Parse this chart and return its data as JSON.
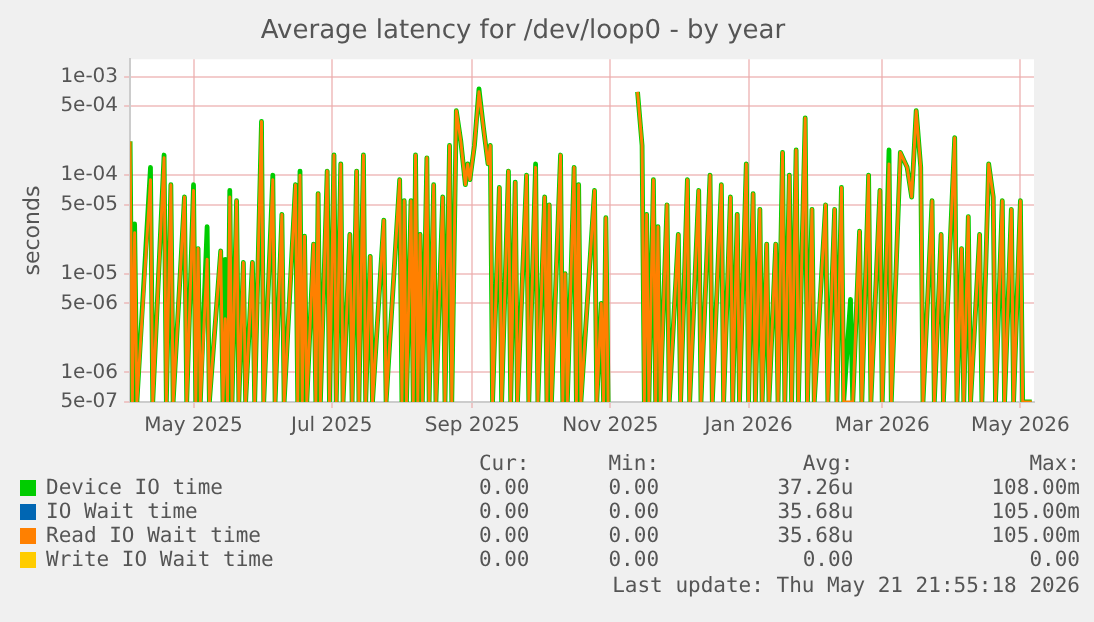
{
  "chart_data": {
    "type": "line",
    "title": "Average latency for /dev/loop0 - by year",
    "ylabel": "seconds",
    "log": "y",
    "grid": true,
    "legend": "bottom",
    "marker": "none",
    "line_style": "solid",
    "ylim": [
      5e-07,
      0.0015
    ],
    "yticks": [
      {
        "value": 5e-07,
        "label": "5e-07"
      },
      {
        "value": 1e-06,
        "label": "1e-06"
      },
      {
        "value": 5e-06,
        "label": "5e-06"
      },
      {
        "value": 1e-05,
        "label": "1e-05"
      },
      {
        "value": 5e-05,
        "label": "5e-05"
      },
      {
        "value": 0.0001,
        "label": "1e-04"
      },
      {
        "value": 0.0005,
        "label": "5e-04"
      },
      {
        "value": 0.001,
        "label": "1e-03"
      }
    ],
    "xlim": [
      "2025-04-17",
      "2026-05-21"
    ],
    "xticks": [
      {
        "value": "2025-05-15",
        "label": "May 2025"
      },
      {
        "value": "2025-07-15",
        "label": "Jul 2025"
      },
      {
        "value": "2025-09-15",
        "label": "Sep 2025"
      },
      {
        "value": "2025-11-15",
        "label": "Nov 2025"
      },
      {
        "value": "2026-01-15",
        "label": "Jan 2026"
      },
      {
        "value": "2026-03-15",
        "label": "Mar 2026"
      },
      {
        "value": "2026-05-15",
        "label": "May 2026"
      }
    ],
    "x": [
      "2025-04-17",
      "2025-04-18",
      "2025-04-19",
      "2025-04-20",
      "2025-04-26",
      "2025-04-27",
      "2025-05-02",
      "2025-05-03",
      "2025-05-05",
      "2025-05-06",
      "2025-05-11",
      "2025-05-12",
      "2025-05-15",
      "2025-05-16",
      "2025-05-17",
      "2025-05-18",
      "2025-05-21",
      "2025-05-22",
      "2025-05-27",
      "2025-05-28",
      "2025-05-29",
      "2025-05-30",
      "2025-05-31",
      "2025-06-01",
      "2025-06-03",
      "2025-06-04",
      "2025-06-06",
      "2025-06-07",
      "2025-06-10",
      "2025-06-11",
      "2025-06-14",
      "2025-06-15",
      "2025-06-19",
      "2025-06-20",
      "2025-06-23",
      "2025-06-24",
      "2025-06-29",
      "2025-06-30",
      "2025-07-01",
      "2025-07-02",
      "2025-07-03",
      "2025-07-04",
      "2025-07-07",
      "2025-07-08",
      "2025-07-09",
      "2025-07-10",
      "2025-07-13",
      "2025-07-14",
      "2025-07-16",
      "2025-07-17",
      "2025-07-19",
      "2025-07-20",
      "2025-07-23",
      "2025-07-24",
      "2025-07-26",
      "2025-07-27",
      "2025-07-29",
      "2025-07-30",
      "2025-08-01",
      "2025-08-02",
      "2025-08-07",
      "2025-08-08",
      "2025-08-14",
      "2025-08-15",
      "2025-08-16",
      "2025-08-17",
      "2025-08-19",
      "2025-08-20",
      "2025-08-21",
      "2025-08-22",
      "2025-08-23",
      "2025-08-24",
      "2025-08-26",
      "2025-08-27",
      "2025-08-29",
      "2025-08-30",
      "2025-09-02",
      "2025-09-03",
      "2025-09-05",
      "2025-09-06",
      "2025-09-08",
      "2025-09-10",
      "2025-09-12",
      "2025-09-13",
      "2025-09-14",
      "2025-09-16",
      "2025-09-18",
      "2025-09-20",
      "2025-09-22",
      "2025-09-23",
      "2025-09-24",
      "2025-09-27",
      "2025-09-28",
      "2025-10-01",
      "2025-10-02",
      "2025-10-04",
      "2025-10-05",
      "2025-10-09",
      "2025-10-10",
      "2025-10-13",
      "2025-10-14",
      "2025-10-17",
      "2025-10-18",
      "2025-10-19",
      "2025-10-20",
      "2025-10-24",
      "2025-10-25",
      "2025-10-26",
      "2025-10-27",
      "2025-10-30",
      "2025-10-31",
      "2025-11-01",
      "2025-11-02",
      "2025-11-08",
      "2025-11-09",
      "2025-11-11",
      "2025-11-12",
      "2025-11-13",
      "2025-11-14",
      "2025-11-20",
      "2025-11-27",
      "2025-11-29",
      "2025-11-30",
      "2025-12-01",
      "2025-12-02",
      "2025-12-04",
      "2025-12-05",
      "2025-12-06",
      "2025-12-07",
      "2025-12-10",
      "2025-12-11",
      "2025-12-15",
      "2025-12-16",
      "2025-12-19",
      "2025-12-20",
      "2025-12-24",
      "2025-12-25",
      "2025-12-29",
      "2025-12-30",
      "2026-01-03",
      "2026-01-04",
      "2026-01-07",
      "2026-01-08",
      "2026-01-10",
      "2026-01-11",
      "2026-01-14",
      "2026-01-15",
      "2026-01-17",
      "2026-01-18",
      "2026-01-20",
      "2026-01-21",
      "2026-01-23",
      "2026-01-24",
      "2026-01-27",
      "2026-01-28",
      "2026-01-30",
      "2026-01-31",
      "2026-02-02",
      "2026-02-03",
      "2026-02-05",
      "2026-02-06",
      "2026-02-09",
      "2026-02-10",
      "2026-02-12",
      "2026-02-13",
      "2026-02-18",
      "2026-02-19",
      "2026-02-22",
      "2026-02-23",
      "2026-02-25",
      "2026-02-26",
      "2026-03-01",
      "2026-03-02",
      "2026-03-05",
      "2026-03-06",
      "2026-03-09",
      "2026-03-10",
      "2026-03-14",
      "2026-03-15",
      "2026-03-18",
      "2026-03-19",
      "2026-03-23",
      "2026-03-26",
      "2026-03-28",
      "2026-03-30",
      "2026-04-01",
      "2026-04-02",
      "2026-04-06",
      "2026-04-07",
      "2026-04-10",
      "2026-04-11",
      "2026-04-16",
      "2026-04-17",
      "2026-04-19",
      "2026-04-20",
      "2026-04-22",
      "2026-04-23",
      "2026-04-27",
      "2026-04-28",
      "2026-05-01",
      "2026-05-03",
      "2026-05-04",
      "2026-05-07",
      "2026-05-08",
      "2026-05-11",
      "2026-05-12",
      "2026-05-15",
      "2026-05-16",
      "2026-05-20"
    ],
    "series": [
      {
        "name": "Device IO time",
        "color": "#00cc00",
        "values": [
          0.00022,
          5e-07,
          3.2e-05,
          5e-07,
          0.00012,
          5e-07,
          0.00016,
          5e-07,
          8e-05,
          5e-07,
          6e-05,
          5e-07,
          8e-05,
          5e-07,
          1.8e-05,
          5e-07,
          3e-05,
          5e-07,
          1.7e-05,
          5e-07,
          1.4e-05,
          5e-07,
          7e-05,
          5e-07,
          5.5e-05,
          5e-07,
          1.3e-05,
          5e-07,
          1.3e-05,
          5e-07,
          0.00035,
          5e-07,
          0.0001,
          5e-07,
          4e-05,
          5e-07,
          8e-05,
          5e-07,
          0.00011,
          5e-07,
          2.4e-05,
          5e-07,
          2e-05,
          5e-07,
          6.5e-05,
          5e-07,
          0.00011,
          5e-07,
          0.00016,
          5e-07,
          0.00013,
          5e-07,
          2.5e-05,
          5e-07,
          0.00011,
          5e-07,
          0.00016,
          5e-07,
          1.5e-05,
          5e-07,
          3.5e-05,
          5e-07,
          9e-05,
          5e-07,
          5.5e-05,
          5e-07,
          5.5e-05,
          5e-07,
          0.00016,
          5e-07,
          2.5e-05,
          5e-07,
          0.00015,
          5e-07,
          8e-05,
          5e-07,
          6e-05,
          5e-07,
          0.0002,
          5e-07,
          0.00045,
          0.00022,
          8e-05,
          0.00013,
          9e-05,
          0.0002,
          0.00075,
          0.0003,
          0.00013,
          0.0002,
          5e-07,
          7.5e-05,
          5e-07,
          0.00011,
          5e-07,
          8.5e-05,
          5e-07,
          0.0001,
          5e-07,
          0.00013,
          5e-07,
          6e-05,
          5e-07,
          5e-05,
          5e-07,
          0.00016,
          5e-07,
          1e-05,
          5e-07,
          0.00012,
          5e-07,
          8e-05,
          5e-07,
          7e-05,
          5e-07,
          5e-06,
          5e-07,
          3.7e-05,
          5e-07,
          null,
          0.0007,
          0.0002,
          5e-07,
          4e-05,
          5e-07,
          9e-05,
          5e-07,
          3e-05,
          5e-07,
          5e-05,
          5e-07,
          2.5e-05,
          5e-07,
          9e-05,
          5e-07,
          7e-05,
          5e-07,
          0.0001,
          5e-07,
          8e-05,
          5e-07,
          6e-05,
          5e-07,
          4e-05,
          5e-07,
          0.00013,
          5e-07,
          6.5e-05,
          5e-07,
          4.5e-05,
          5e-07,
          2e-05,
          5e-07,
          2e-05,
          5e-07,
          0.00017,
          5e-07,
          0.0001,
          5e-07,
          0.00018,
          5e-07,
          0.00038,
          5e-07,
          4.5e-05,
          5e-07,
          5e-05,
          5e-07,
          4.5e-05,
          5e-07,
          7.5e-05,
          5e-07,
          5.5e-06,
          5e-07,
          2.7e-05,
          5e-07,
          0.0001,
          5e-07,
          7e-05,
          5e-07,
          0.00018,
          5e-07,
          0.00017,
          0.00012,
          6e-05,
          0.00045,
          0.00012,
          5e-07,
          5.5e-05,
          5e-07,
          2.5e-05,
          5e-07,
          0.00024,
          5e-07,
          1.8e-05,
          5e-07,
          3.8e-05,
          5e-07,
          2.5e-05,
          5e-07,
          0.00013,
          6e-05,
          5e-07,
          5.5e-05,
          5e-07,
          4.5e-05,
          5e-07,
          5.5e-05,
          5e-07,
          5e-07
        ]
      },
      {
        "name": "IO Wait time",
        "color": "#0066b3",
        "values": [
          null,
          null,
          null,
          null,
          null,
          null,
          null,
          null,
          null,
          null,
          null,
          null,
          null,
          null,
          null,
          null,
          null,
          null,
          null,
          null,
          null,
          null,
          null,
          null,
          null,
          null,
          null,
          null,
          null,
          null,
          null,
          null,
          null,
          null,
          null,
          null,
          null,
          null,
          null,
          null,
          null,
          null,
          null,
          null,
          null,
          null,
          null,
          null,
          null,
          null,
          null,
          null,
          null,
          null,
          null,
          null,
          null,
          null,
          null,
          null,
          null,
          null,
          null,
          null,
          null,
          null,
          null,
          null,
          null,
          null,
          null,
          null,
          null,
          null,
          null,
          null,
          null,
          null,
          null,
          null,
          null,
          null,
          null,
          null,
          null,
          null,
          null,
          null,
          null,
          null,
          null,
          null,
          null,
          null,
          null,
          null,
          null,
          null,
          null,
          null,
          null,
          null,
          null,
          null,
          null,
          null,
          null,
          null,
          null,
          null,
          null,
          null,
          null,
          null,
          null,
          null,
          null,
          null,
          null,
          null,
          null,
          null,
          null,
          null,
          null,
          null,
          null,
          null,
          null,
          null,
          null,
          null,
          null,
          null,
          null,
          null,
          null,
          null,
          null,
          null,
          null,
          null,
          null,
          null,
          null,
          null,
          null,
          null,
          null,
          null,
          null,
          null,
          null,
          null,
          null,
          null,
          null,
          null,
          null,
          null,
          null,
          null,
          null,
          null,
          null,
          null,
          null,
          null,
          null,
          null,
          null,
          null,
          null,
          null,
          null,
          null,
          null,
          null,
          null,
          null,
          null,
          null,
          null,
          null,
          null,
          null,
          null,
          null,
          null,
          null,
          null,
          null,
          null,
          null,
          null,
          null,
          null,
          null,
          null,
          null,
          null,
          null,
          null,
          null,
          null,
          null,
          null,
          null,
          null
        ]
      },
      {
        "name": "Read IO Wait time",
        "color": "#ff8000",
        "values": [
          0.00022,
          5e-07,
          2.6e-05,
          5e-07,
          9e-05,
          5e-07,
          0.00015,
          5e-07,
          8e-05,
          5e-07,
          6e-05,
          5e-07,
          7e-05,
          5e-07,
          1.8e-05,
          5e-07,
          1.4e-05,
          5e-07,
          1.7e-05,
          5e-07,
          3.5e-06,
          5e-07,
          6e-05,
          5e-07,
          5.5e-05,
          5e-07,
          1.3e-05,
          5e-07,
          1.3e-05,
          5e-07,
          0.00035,
          5e-07,
          9e-05,
          5e-07,
          4e-05,
          5e-07,
          8e-05,
          5e-07,
          0.0001,
          5e-07,
          2.4e-05,
          5e-07,
          2e-05,
          5e-07,
          6.5e-05,
          5e-07,
          0.00011,
          5e-07,
          0.00016,
          5e-07,
          0.00013,
          5e-07,
          2.5e-05,
          5e-07,
          0.00011,
          5e-07,
          0.00016,
          5e-07,
          1.5e-05,
          5e-07,
          3.5e-05,
          5e-07,
          9e-05,
          5e-07,
          5.5e-05,
          5e-07,
          5.5e-05,
          5e-07,
          0.00016,
          5e-07,
          2.5e-05,
          5e-07,
          0.00015,
          5e-07,
          8e-05,
          5e-07,
          6e-05,
          5e-07,
          0.0002,
          5e-07,
          0.00045,
          0.00022,
          8e-05,
          0.00013,
          9e-05,
          0.0002,
          0.0007,
          0.0003,
          0.00013,
          0.0002,
          5e-07,
          7.5e-05,
          5e-07,
          0.00011,
          5e-07,
          8.5e-05,
          5e-07,
          0.0001,
          5e-07,
          0.00012,
          5e-07,
          6e-05,
          5e-07,
          5e-05,
          5e-07,
          0.00016,
          5e-07,
          1e-05,
          5e-07,
          0.00012,
          5e-07,
          8e-05,
          5e-07,
          7e-05,
          5e-07,
          5e-06,
          5e-07,
          3.7e-05,
          5e-07,
          null,
          0.0007,
          0.0002,
          5e-07,
          4e-05,
          5e-07,
          9e-05,
          5e-07,
          3e-05,
          5e-07,
          5e-05,
          5e-07,
          2.5e-05,
          5e-07,
          9e-05,
          5e-07,
          7e-05,
          5e-07,
          0.0001,
          5e-07,
          8e-05,
          5e-07,
          6e-05,
          5e-07,
          4e-05,
          5e-07,
          0.00013,
          5e-07,
          6.5e-05,
          5e-07,
          4.5e-05,
          5e-07,
          2e-05,
          5e-07,
          2e-05,
          5e-07,
          0.00017,
          5e-07,
          0.0001,
          5e-07,
          0.00018,
          5e-07,
          0.00038,
          5e-07,
          4.5e-05,
          5e-07,
          5e-05,
          5e-07,
          4.5e-05,
          5e-07,
          7.5e-05,
          5e-07,
          5e-07,
          5e-07,
          2.7e-05,
          5e-07,
          0.0001,
          5e-07,
          7e-05,
          5e-07,
          0.00013,
          5e-07,
          0.00017,
          0.00012,
          6e-05,
          0.00045,
          0.00012,
          5e-07,
          5.5e-05,
          5e-07,
          2.5e-05,
          5e-07,
          0.00024,
          5e-07,
          1.8e-05,
          5e-07,
          3.8e-05,
          5e-07,
          2.5e-05,
          5e-07,
          0.00013,
          6e-05,
          5e-07,
          5.5e-05,
          5e-07,
          4.5e-05,
          5e-07,
          5.5e-05,
          5e-07,
          5e-07
        ]
      },
      {
        "name": "Write IO Wait time",
        "color": "#ffcc00",
        "values": [
          null,
          null,
          null,
          null,
          null,
          null,
          null,
          null,
          null,
          null,
          null,
          null,
          null,
          null,
          null,
          null,
          null,
          null,
          null,
          null,
          null,
          null,
          null,
          null,
          null,
          null,
          null,
          null,
          null,
          null,
          null,
          null,
          null,
          null,
          null,
          null,
          null,
          null,
          null,
          null,
          null,
          null,
          null,
          null,
          null,
          null,
          null,
          null,
          null,
          null,
          null,
          null,
          null,
          null,
          null,
          null,
          null,
          null,
          null,
          null,
          null,
          null,
          null,
          null,
          null,
          null,
          null,
          null,
          null,
          null,
          null,
          null,
          null,
          null,
          null,
          null,
          null,
          null,
          null,
          null,
          null,
          null,
          null,
          null,
          null,
          null,
          null,
          null,
          null,
          null,
          null,
          null,
          null,
          null,
          null,
          null,
          null,
          null,
          null,
          null,
          null,
          null,
          null,
          null,
          null,
          null,
          null,
          null,
          null,
          null,
          null,
          null,
          null,
          null,
          null,
          null,
          null,
          null,
          null,
          null,
          null,
          null,
          null,
          null,
          null,
          null,
          null,
          null,
          null,
          null,
          null,
          null,
          null,
          null,
          null,
          null,
          null,
          null,
          null,
          null,
          null,
          null,
          null,
          null,
          null,
          null,
          null,
          null,
          null,
          null,
          null,
          null,
          null,
          null,
          null,
          null,
          null,
          null,
          null,
          null,
          null,
          null,
          null,
          null,
          null,
          null,
          null,
          null,
          null,
          null,
          null,
          null,
          null,
          null,
          null,
          null,
          null,
          null,
          null,
          null,
          null,
          null,
          null,
          null,
          null,
          null,
          null,
          null,
          null,
          null,
          null,
          null,
          null,
          null,
          null,
          null,
          null,
          null,
          null,
          null,
          null,
          null,
          null,
          null,
          null,
          null,
          null,
          null,
          null
        ]
      }
    ],
    "annotations": [
      "Cur:",
      "Min:",
      "Avg:",
      "Max:",
      "0.00",
      "0.00",
      "37.26u",
      "108.00m",
      "0.00",
      "0.00",
      "35.68u",
      "105.00m",
      "0.00",
      "0.00",
      "35.68u",
      "105.00m",
      "0.00",
      "0.00",
      "0.00",
      "0.00",
      "Last update: Thu May 21 21:55:18 2026"
    ]
  }
}
